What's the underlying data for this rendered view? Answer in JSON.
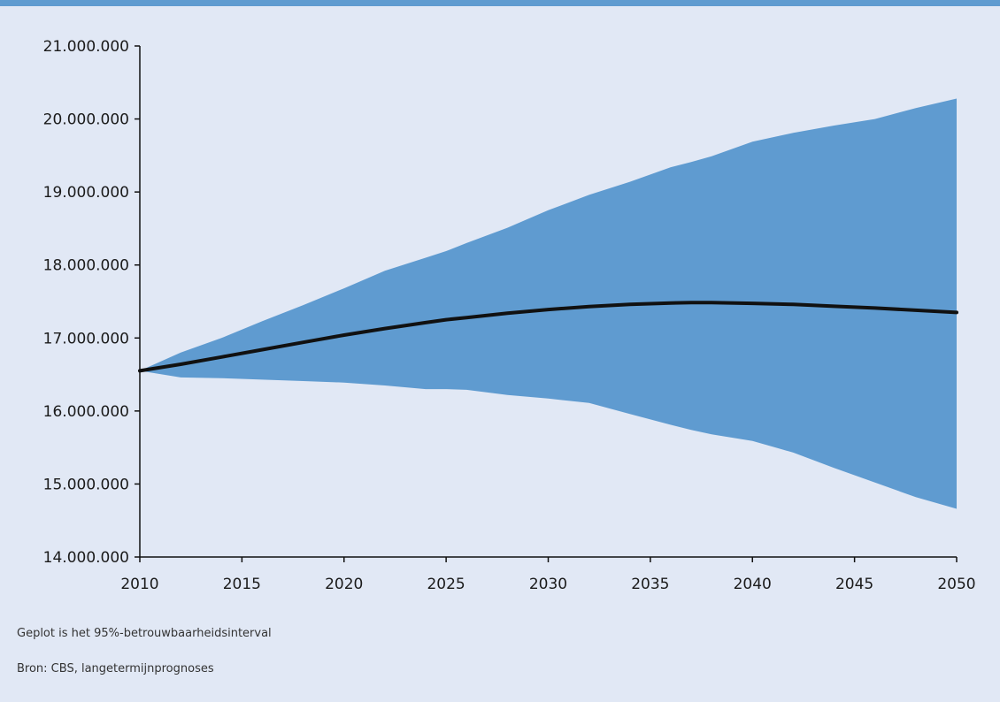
{
  "chart_data": {
    "type": "area",
    "title": "",
    "xlabel": "",
    "ylabel": "",
    "x": [
      2010,
      2012,
      2014,
      2016,
      2018,
      2020,
      2022,
      2024,
      2025,
      2026,
      2028,
      2030,
      2032,
      2034,
      2036,
      2037,
      2038,
      2040,
      2042,
      2044,
      2046,
      2048,
      2050
    ],
    "series": [
      {
        "values": [
          16550000,
          16640000,
          16740000,
          16840000,
          16940000,
          17040000,
          17130000,
          17210000,
          17250000,
          17280000,
          17340000,
          17390000,
          17430000,
          17460000,
          17480000,
          17485000,
          17485000,
          17475000,
          17460000,
          17435000,
          17410000,
          17380000,
          17350000
        ]
      }
    ],
    "band": {
      "label": "95%-betrouwbaarheidsinterval",
      "upper": [
        16550000,
        16800000,
        17000000,
        17230000,
        17450000,
        17680000,
        17920000,
        18100000,
        18190000,
        18300000,
        18510000,
        18750000,
        18960000,
        19140000,
        19340000,
        19410000,
        19490000,
        19690000,
        19810000,
        19910000,
        20000000,
        20150000,
        20280000
      ],
      "lower": [
        16550000,
        16460000,
        16450000,
        16430000,
        16410000,
        16390000,
        16350000,
        16300000,
        16300000,
        16290000,
        16220000,
        16170000,
        16110000,
        15960000,
        15810000,
        15740000,
        15680000,
        15590000,
        15430000,
        15220000,
        15020000,
        14820000,
        14660000
      ]
    },
    "xticks": [
      "2010",
      "2015",
      "2020",
      "2025",
      "2030",
      "2035",
      "2040",
      "2045",
      "2050"
    ],
    "yticks": [
      "14.000.000",
      "15.000.000",
      "16.000.000",
      "17.000.000",
      "18.000.000",
      "19.000.000",
      "20.000.000",
      "21.000.000"
    ],
    "xlim": [
      2010,
      2050
    ],
    "ylim": [
      14000000,
      21000000
    ],
    "grid": false,
    "colors": {
      "band": "#5f9bd0",
      "line": "#111111",
      "background": "#e1e8f5"
    }
  },
  "notes": {
    "interval": "Geplot is het 95%-betrouwbaarheidsinterval",
    "source": "Bron: CBS, langetermijnprognoses"
  }
}
